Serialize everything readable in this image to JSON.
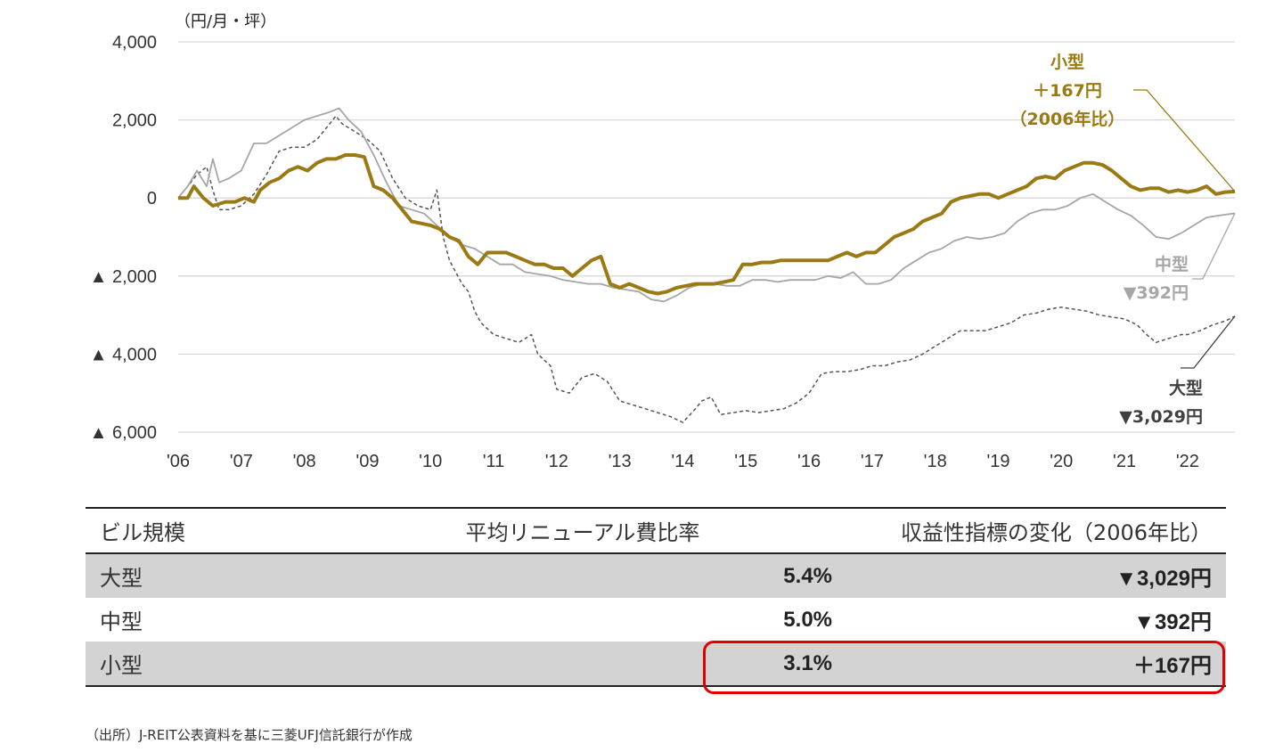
{
  "chart_data": {
    "type": "line",
    "unit_label": "（円/月・坪）",
    "y_ticks": [
      {
        "value": 4000,
        "label": "4,000"
      },
      {
        "value": 2000,
        "label": "2,000"
      },
      {
        "value": 0,
        "label": "0"
      },
      {
        "value": -2000,
        "label": "▲ 2,000"
      },
      {
        "value": -4000,
        "label": "▲ 4,000"
      },
      {
        "value": -6000,
        "label": "▲ 6,000"
      }
    ],
    "x_ticks": [
      "'06",
      "'07",
      "'08",
      "'09",
      "'10",
      "'11",
      "'12",
      "'13",
      "'14",
      "'15",
      "'16",
      "'17",
      "'18",
      "'19",
      "'20",
      "'21",
      "'22"
    ],
    "xlim": [
      2006.0,
      2022.75
    ],
    "ylim": [
      -6000,
      4000
    ],
    "grid": true,
    "series": [
      {
        "name": "大型",
        "color": "#555555",
        "style": "dashed",
        "x": [
          2006.0,
          2006.15,
          2006.3,
          2006.45,
          2006.55,
          2006.65,
          2006.8,
          2007.0,
          2007.2,
          2007.4,
          2007.6,
          2007.8,
          2008.0,
          2008.2,
          2008.35,
          2008.5,
          2008.6,
          2008.8,
          2009.0,
          2009.2,
          2009.4,
          2009.6,
          2009.8,
          2010.0,
          2010.1,
          2010.2,
          2010.3,
          2010.5,
          2010.6,
          2010.7,
          2010.8,
          2011.0,
          2011.2,
          2011.4,
          2011.6,
          2011.7,
          2011.9,
          2012.0,
          2012.2,
          2012.4,
          2012.6,
          2012.8,
          2013.0,
          2013.2,
          2013.4,
          2013.6,
          2013.8,
          2014.0,
          2014.2,
          2014.3,
          2014.45,
          2014.6,
          2014.8,
          2015.0,
          2015.2,
          2015.4,
          2015.6,
          2015.8,
          2016.0,
          2016.2,
          2016.4,
          2016.6,
          2016.8,
          2017.0,
          2017.2,
          2017.4,
          2017.6,
          2017.8,
          2018.0,
          2018.2,
          2018.4,
          2018.6,
          2018.8,
          2019.0,
          2019.2,
          2019.4,
          2019.6,
          2019.8,
          2020.0,
          2020.2,
          2020.4,
          2020.6,
          2020.8,
          2021.0,
          2021.2,
          2021.35,
          2021.5,
          2021.7,
          2021.9,
          2022.0,
          2022.2,
          2022.4,
          2022.6,
          2022.75
        ],
        "y": [
          0,
          300,
          600,
          800,
          200,
          -300,
          -300,
          -200,
          100,
          600,
          1200,
          1300,
          1300,
          1500,
          1800,
          2100,
          1900,
          1700,
          1500,
          1200,
          500,
          0,
          -200,
          -300,
          200,
          -1000,
          -1600,
          -2200,
          -2400,
          -2900,
          -3200,
          -3500,
          -3600,
          -3700,
          -3500,
          -4000,
          -4300,
          -4900,
          -5000,
          -4600,
          -4500,
          -4700,
          -5200,
          -5300,
          -5400,
          -5500,
          -5600,
          -5750,
          -5400,
          -5200,
          -5100,
          -5550,
          -5500,
          -5450,
          -5500,
          -5450,
          -5400,
          -5250,
          -5000,
          -4500,
          -4450,
          -4450,
          -4400,
          -4300,
          -4300,
          -4200,
          -4150,
          -4000,
          -3800,
          -3600,
          -3400,
          -3400,
          -3400,
          -3300,
          -3200,
          -3000,
          -2950,
          -2850,
          -2800,
          -2850,
          -2900,
          -3000,
          -3050,
          -3100,
          -3250,
          -3500,
          -3700,
          -3600,
          -3500,
          -3500,
          -3400,
          -3250,
          -3150,
          -3029
        ]
      },
      {
        "name": "中型",
        "color": "#a6a6a6",
        "style": "solid",
        "x": [
          2006.0,
          2006.15,
          2006.3,
          2006.45,
          2006.55,
          2006.65,
          2006.8,
          2007.0,
          2007.2,
          2007.4,
          2007.6,
          2007.8,
          2008.0,
          2008.2,
          2008.4,
          2008.55,
          2008.7,
          2008.9,
          2009.1,
          2009.3,
          2009.5,
          2009.7,
          2009.9,
          2010.1,
          2010.3,
          2010.5,
          2010.7,
          2010.9,
          2011.1,
          2011.3,
          2011.5,
          2011.7,
          2011.9,
          2012.1,
          2012.3,
          2012.5,
          2012.7,
          2012.9,
          2013.1,
          2013.3,
          2013.5,
          2013.7,
          2013.9,
          2014.1,
          2014.3,
          2014.5,
          2014.7,
          2014.9,
          2015.1,
          2015.3,
          2015.5,
          2015.7,
          2015.9,
          2016.1,
          2016.3,
          2016.5,
          2016.7,
          2016.9,
          2017.1,
          2017.3,
          2017.5,
          2017.7,
          2017.9,
          2018.1,
          2018.3,
          2018.5,
          2018.7,
          2018.9,
          2019.1,
          2019.3,
          2019.5,
          2019.7,
          2019.9,
          2020.1,
          2020.3,
          2020.5,
          2020.7,
          2020.9,
          2021.1,
          2021.3,
          2021.5,
          2021.7,
          2021.9,
          2022.1,
          2022.3,
          2022.5,
          2022.75
        ],
        "y": [
          0,
          300,
          700,
          300,
          1000,
          400,
          500,
          700,
          1400,
          1400,
          1600,
          1800,
          2000,
          2100,
          2200,
          2300,
          2000,
          1700,
          1100,
          400,
          -200,
          -300,
          -400,
          -700,
          -1000,
          -1200,
          -1300,
          -1500,
          -1700,
          -1700,
          -1900,
          -1950,
          -2000,
          -2100,
          -2150,
          -2200,
          -2200,
          -2300,
          -2350,
          -2400,
          -2600,
          -2650,
          -2500,
          -2300,
          -2200,
          -2200,
          -2250,
          -2250,
          -2100,
          -2100,
          -2150,
          -2100,
          -2100,
          -2100,
          -2000,
          -2050,
          -1900,
          -2200,
          -2200,
          -2100,
          -1800,
          -1600,
          -1400,
          -1300,
          -1100,
          -1000,
          -1050,
          -1000,
          -900,
          -600,
          -400,
          -300,
          -300,
          -200,
          0,
          100,
          -100,
          -300,
          -450,
          -700,
          -1000,
          -1050,
          -900,
          -700,
          -500,
          -450,
          -392
        ]
      },
      {
        "name": "小型",
        "color": "#9a7a14",
        "style": "bold",
        "x": [
          2006.0,
          2006.15,
          2006.25,
          2006.4,
          2006.55,
          2006.75,
          2006.9,
          2007.05,
          2007.2,
          2007.3,
          2007.45,
          2007.6,
          2007.75,
          2007.9,
          2008.05,
          2008.2,
          2008.35,
          2008.5,
          2008.65,
          2008.8,
          2008.95,
          2009.1,
          2009.25,
          2009.4,
          2009.55,
          2009.7,
          2009.85,
          2010.0,
          2010.15,
          2010.3,
          2010.45,
          2010.6,
          2010.75,
          2010.9,
          2011.05,
          2011.2,
          2011.35,
          2011.5,
          2011.65,
          2011.8,
          2011.95,
          2012.1,
          2012.25,
          2012.4,
          2012.55,
          2012.7,
          2012.85,
          2013.0,
          2013.15,
          2013.3,
          2013.45,
          2013.6,
          2013.75,
          2013.9,
          2014.05,
          2014.2,
          2014.35,
          2014.5,
          2014.65,
          2014.8,
          2014.95,
          2015.1,
          2015.25,
          2015.4,
          2015.55,
          2015.7,
          2015.85,
          2016.0,
          2016.15,
          2016.3,
          2016.45,
          2016.6,
          2016.75,
          2016.9,
          2017.05,
          2017.2,
          2017.35,
          2017.5,
          2017.65,
          2017.8,
          2017.95,
          2018.1,
          2018.25,
          2018.4,
          2018.55,
          2018.7,
          2018.85,
          2019.0,
          2019.15,
          2019.3,
          2019.45,
          2019.6,
          2019.75,
          2019.9,
          2020.05,
          2020.2,
          2020.35,
          2020.5,
          2020.65,
          2020.8,
          2020.95,
          2021.1,
          2021.25,
          2021.4,
          2021.55,
          2021.7,
          2021.85,
          2022.0,
          2022.15,
          2022.3,
          2022.45,
          2022.6,
          2022.75
        ],
        "y": [
          0,
          0,
          300,
          0,
          -200,
          -100,
          -100,
          0,
          -100,
          200,
          400,
          500,
          700,
          800,
          700,
          900,
          1000,
          1000,
          1100,
          1100,
          1050,
          300,
          200,
          0,
          -300,
          -600,
          -650,
          -700,
          -800,
          -1000,
          -1100,
          -1500,
          -1700,
          -1400,
          -1400,
          -1400,
          -1500,
          -1600,
          -1700,
          -1700,
          -1800,
          -1800,
          -2000,
          -1800,
          -1600,
          -1500,
          -2200,
          -2300,
          -2200,
          -2300,
          -2400,
          -2450,
          -2400,
          -2300,
          -2250,
          -2200,
          -2200,
          -2200,
          -2150,
          -2100,
          -1700,
          -1700,
          -1650,
          -1650,
          -1600,
          -1600,
          -1600,
          -1600,
          -1600,
          -1600,
          -1500,
          -1400,
          -1500,
          -1400,
          -1400,
          -1200,
          -1000,
          -900,
          -800,
          -600,
          -500,
          -400,
          -100,
          0,
          50,
          100,
          100,
          0,
          100,
          200,
          300,
          500,
          550,
          500,
          700,
          800,
          900,
          900,
          850,
          700,
          500,
          300,
          200,
          250,
          250,
          150,
          200,
          150,
          200,
          300,
          100,
          150,
          167
        ]
      }
    ],
    "annotations": {
      "small": {
        "lines": [
          "小型",
          "＋167円",
          "（2006年比）"
        ],
        "color": "#9a7a14"
      },
      "mid": {
        "lines": [
          "中型",
          "▼392円"
        ],
        "color": "#a6a6a6"
      },
      "large": {
        "lines": [
          "大型",
          "▼3,029円"
        ],
        "color": "#404040"
      }
    }
  },
  "table": {
    "headers": {
      "name": "ビル規模",
      "rate": "平均リニューアル費比率",
      "change": "収益性指標の変化（2006年比）"
    },
    "rows": [
      {
        "name": "大型",
        "rate": "5.4%",
        "change": "▼3,029円",
        "shaded": true
      },
      {
        "name": "中型",
        "rate": "5.0%",
        "change": "▼392円",
        "shaded": false
      },
      {
        "name": "小型",
        "rate": "3.1%",
        "change": "＋167円",
        "shaded": true
      }
    ]
  },
  "source": "（出所）J-REIT公表資料を基に三菱UFJ信託銀行が作成",
  "highlight_color": "#e00000"
}
